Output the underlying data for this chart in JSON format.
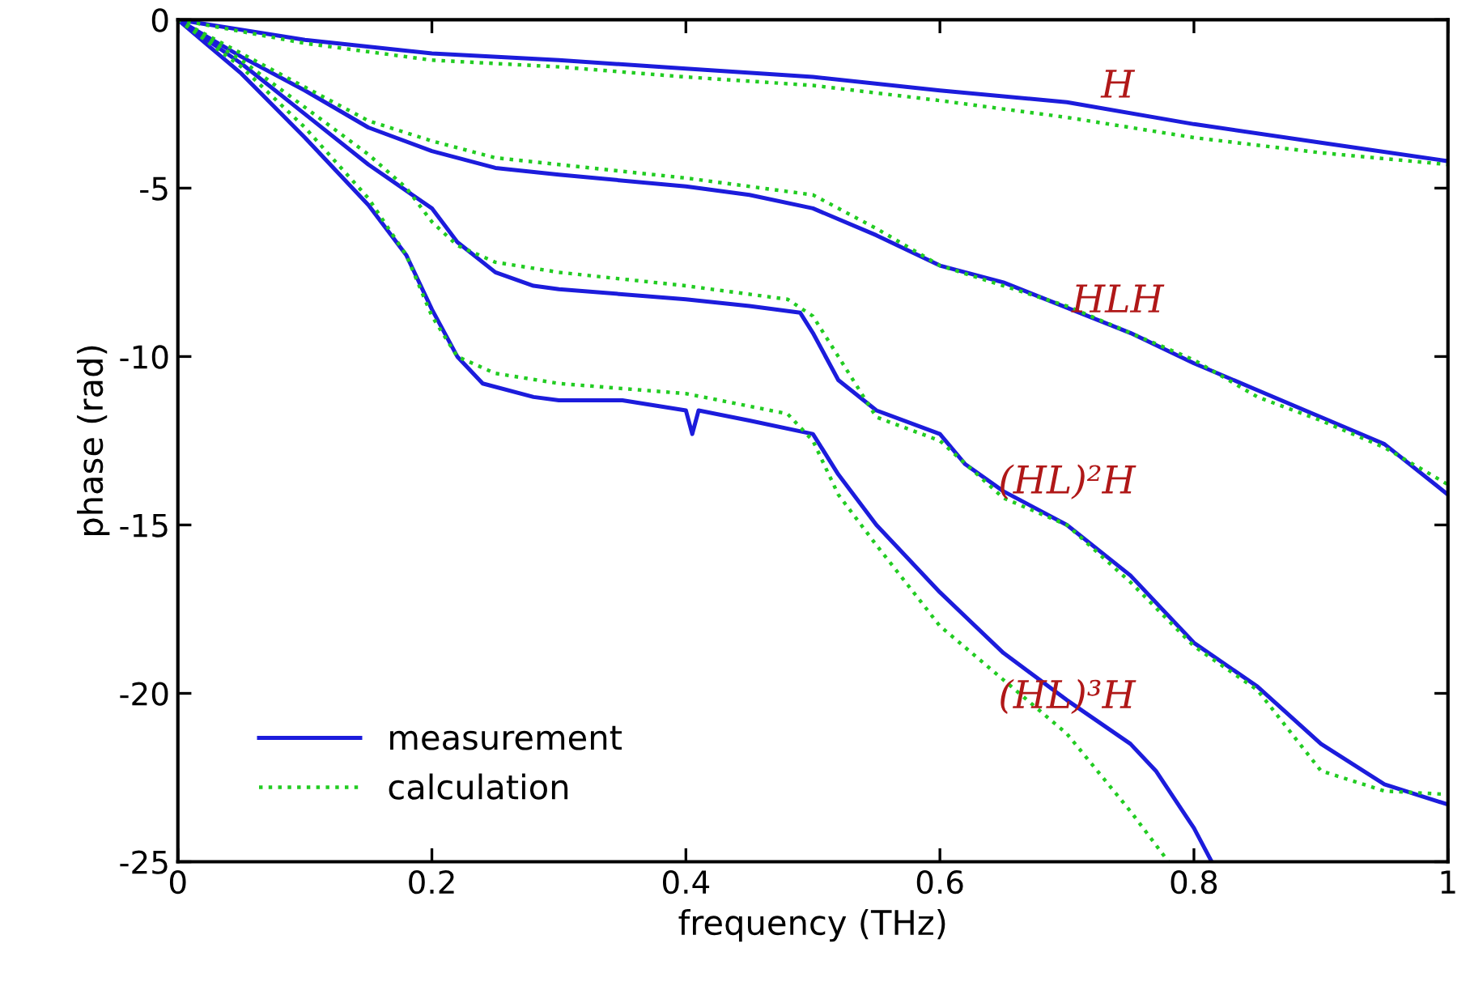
{
  "chart_data": {
    "type": "line",
    "xlabel": "frequency (THz)",
    "ylabel": "phase (rad)",
    "xlim": [
      0,
      1
    ],
    "ylim": [
      -25,
      0
    ],
    "xticks": [
      0,
      0.2,
      0.4,
      0.6,
      0.8,
      1
    ],
    "yticks": [
      {
        "value": -25,
        "label": "-25"
      },
      {
        "value": -20,
        "label": "-20"
      },
      {
        "value": -15,
        "label": "-15"
      },
      {
        "value": -10,
        "label": "-10"
      },
      {
        "value": -5,
        "label": "-5"
      },
      0
    ],
    "grid": false,
    "legend": "bottom left",
    "marker": "none",
    "series": [
      {
        "name": "measurement",
        "color": "#1c1cdc",
        "line_style": "solid",
        "x": [
          0,
          0.1,
          0.2,
          0.3,
          0.4,
          0.5,
          0.6,
          0.7,
          0.8,
          0.9,
          1.0
        ],
        "values": [
          0,
          -0.6,
          -1.0,
          -1.2,
          -1.45,
          -1.7,
          -2.1,
          -2.45,
          -3.1,
          -3.65,
          -4.2
        ]
      },
      {
        "name": "calculation",
        "color": "#22cc22",
        "line_style": "dotted",
        "x": [
          0,
          0.1,
          0.2,
          0.3,
          0.4,
          0.5,
          0.6,
          0.7,
          0.8,
          0.9,
          1.0
        ],
        "values": [
          0,
          -0.7,
          -1.2,
          -1.4,
          -1.7,
          -1.95,
          -2.4,
          -2.9,
          -3.5,
          -3.95,
          -4.3
        ]
      },
      {
        "color": "#1c1cdc",
        "line_style": "solid",
        "x": [
          0,
          0.05,
          0.1,
          0.15,
          0.2,
          0.25,
          0.3,
          0.4,
          0.45,
          0.5,
          0.55,
          0.6,
          0.65,
          0.7,
          0.75,
          0.8,
          0.85,
          0.9,
          0.95,
          1.0
        ],
        "values": [
          0,
          -1.1,
          -2.1,
          -3.2,
          -3.9,
          -4.4,
          -4.6,
          -4.95,
          -5.2,
          -5.6,
          -6.4,
          -7.3,
          -7.8,
          -8.55,
          -9.3,
          -10.2,
          -11.0,
          -11.8,
          -12.6,
          -14.1
        ]
      },
      {
        "color": "#22cc22",
        "line_style": "dotted",
        "x": [
          0,
          0.05,
          0.1,
          0.15,
          0.2,
          0.25,
          0.3,
          0.4,
          0.5,
          0.55,
          0.6,
          0.7,
          0.8,
          0.85,
          0.9,
          0.95,
          1.0
        ],
        "values": [
          0,
          -1.0,
          -2.0,
          -3.0,
          -3.6,
          -4.1,
          -4.3,
          -4.7,
          -5.2,
          -6.2,
          -7.3,
          -8.5,
          -10.1,
          -11.2,
          -11.9,
          -12.7,
          -13.8
        ]
      },
      {
        "color": "#1c1cdc",
        "line_style": "solid",
        "x": [
          0,
          0.05,
          0.1,
          0.15,
          0.2,
          0.22,
          0.25,
          0.28,
          0.3,
          0.4,
          0.45,
          0.49,
          0.5,
          0.52,
          0.55,
          0.6,
          0.62,
          0.65,
          0.7,
          0.75,
          0.8,
          0.85,
          0.9,
          0.95,
          1.0
        ],
        "values": [
          0,
          -1.3,
          -2.8,
          -4.3,
          -5.6,
          -6.6,
          -7.5,
          -7.9,
          -8.0,
          -8.3,
          -8.5,
          -8.7,
          -9.3,
          -10.7,
          -11.6,
          -12.3,
          -13.2,
          -14.0,
          -15.0,
          -16.5,
          -18.5,
          -19.8,
          -21.5,
          -22.7,
          -23.3
        ]
      },
      {
        "color": "#22cc22",
        "line_style": "dotted",
        "x": [
          0,
          0.05,
          0.1,
          0.15,
          0.18,
          0.2,
          0.22,
          0.25,
          0.3,
          0.4,
          0.48,
          0.5,
          0.52,
          0.55,
          0.6,
          0.65,
          0.7,
          0.75,
          0.8,
          0.85,
          0.9,
          0.95,
          1.0
        ],
        "values": [
          0,
          -1.2,
          -2.6,
          -4.0,
          -5.0,
          -6.0,
          -6.7,
          -7.2,
          -7.5,
          -7.9,
          -8.3,
          -8.8,
          -10.0,
          -11.8,
          -12.5,
          -14.2,
          -15.0,
          -16.7,
          -18.6,
          -19.9,
          -22.3,
          -22.9,
          -23.0
        ]
      },
      {
        "color": "#1c1cdc",
        "line_style": "solid",
        "x": [
          0,
          0.05,
          0.1,
          0.15,
          0.18,
          0.2,
          0.22,
          0.24,
          0.28,
          0.3,
          0.35,
          0.4,
          0.405,
          0.41,
          0.45,
          0.5,
          0.52,
          0.55,
          0.6,
          0.65,
          0.7,
          0.75,
          0.77,
          0.8,
          0.814
        ],
        "values": [
          0,
          -1.6,
          -3.5,
          -5.5,
          -7.0,
          -8.6,
          -10.0,
          -10.8,
          -11.2,
          -11.3,
          -11.3,
          -11.6,
          -12.3,
          -11.6,
          -11.9,
          -12.3,
          -13.5,
          -15.0,
          -17.0,
          -18.8,
          -20.2,
          -21.5,
          -22.3,
          -24.0,
          -25.0
        ]
      },
      {
        "color": "#22cc22",
        "line_style": "dotted",
        "x": [
          0,
          0.05,
          0.1,
          0.15,
          0.18,
          0.2,
          0.22,
          0.25,
          0.3,
          0.4,
          0.48,
          0.5,
          0.52,
          0.55,
          0.6,
          0.65,
          0.7,
          0.75,
          0.78
        ],
        "values": [
          0,
          -1.4,
          -3.2,
          -5.3,
          -7.0,
          -8.8,
          -10.0,
          -10.5,
          -10.8,
          -11.1,
          -11.7,
          -12.5,
          -14.1,
          -15.6,
          -18.0,
          -19.6,
          -21.2,
          -23.5,
          -25.0
        ]
      }
    ],
    "annotations": [
      "H",
      "HLH",
      "(HL)²H",
      "(HL)³H"
    ]
  }
}
